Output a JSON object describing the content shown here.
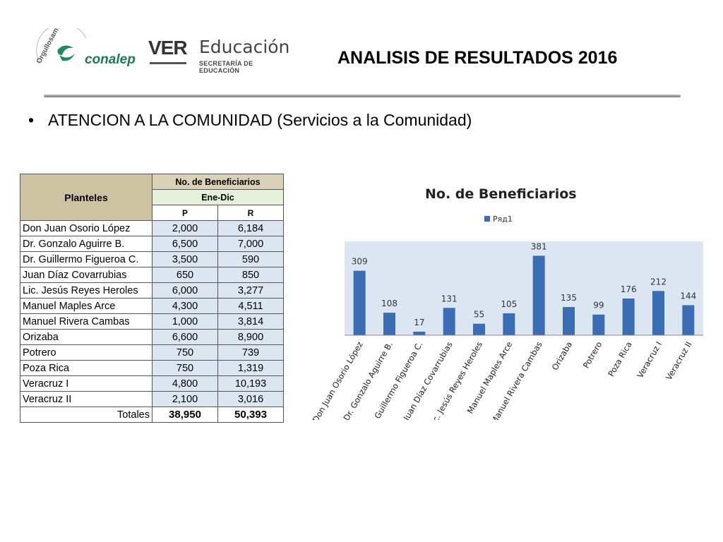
{
  "header": {
    "conalep_small": "Orgullosamente",
    "conalep_name": "conalep",
    "ver_logo": "VER",
    "edu_logo": "Educación",
    "edu_sub": "SECRETARÍA DE EDUCACIÓN",
    "title": "ANALISIS DE RESULTADOS 2016"
  },
  "bullet": {
    "symbol": "•",
    "text": "ATENCION A LA COMUNIDAD (Servicios a la Comunidad)"
  },
  "table": {
    "col_planteles": "Planteles",
    "col_benef": "No. de Beneficiarios",
    "period": "Ene-Dic",
    "col_p": "P",
    "col_r": "R",
    "rows": [
      {
        "name": "Don Juan Osorio López",
        "p": "2,000",
        "r": "6,184"
      },
      {
        "name": "Dr. Gonzalo Aguirre B.",
        "p": "6,500",
        "r": "7,000"
      },
      {
        "name": "Dr. Guillermo Figueroa C.",
        "p": "3,500",
        "r": "590"
      },
      {
        "name": "Juan Díaz Covarrubias",
        "p": "650",
        "r": "850"
      },
      {
        "name": "Lic. Jesús Reyes Heroles",
        "p": "6,000",
        "r": "3,277"
      },
      {
        "name": "Manuel Maples Arce",
        "p": "4,300",
        "r": "4,511"
      },
      {
        "name": "Manuel Rivera Cambas",
        "p": "1,000",
        "r": "3,814"
      },
      {
        "name": "Orizaba",
        "p": "6,600",
        "r": "8,900"
      },
      {
        "name": "Potrero",
        "p": "750",
        "r": "739"
      },
      {
        "name": "Poza Rica",
        "p": "750",
        "r": "1,319"
      },
      {
        "name": "Veracruz I",
        "p": "4,800",
        "r": "10,193"
      },
      {
        "name": "Veracruz II",
        "p": "2,100",
        "r": "3,016"
      }
    ],
    "totals_label": "Totales",
    "total_p": "38,950",
    "total_r": "50,393"
  },
  "chart_data": {
    "type": "bar",
    "title": "No. de Beneficiarios",
    "legend_position": "top",
    "categories": [
      "Don Juan Osorio López",
      "Dr. Gonzalo Aguirre B.",
      "Dr. Guillermo Figueroa C.",
      "Juan Díaz Covarrubias",
      "Lic. Jesús Reyes Heroles",
      "Manuel Maples Arce",
      "Manuel Rivera Cambas",
      "Orizaba",
      "Potrero",
      "Poza Rica",
      "Veracruz I",
      "Veracruz II"
    ],
    "series": [
      {
        "name": "Ряд1",
        "values": [
          309,
          108,
          17,
          131,
          55,
          105,
          381,
          135,
          99,
          176,
          212,
          144
        ]
      }
    ],
    "ylim": [
      0,
      450
    ],
    "grid": false,
    "colors": {
      "bar": "#3a6db4",
      "plot_bg": "#dce6f2"
    }
  }
}
